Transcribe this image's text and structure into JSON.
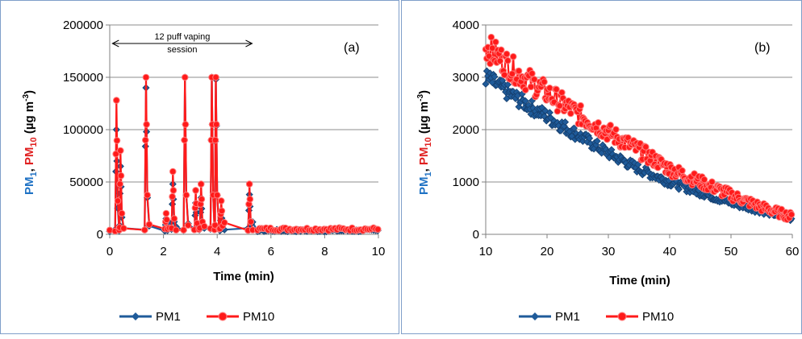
{
  "colors": {
    "pm1": "#1f5b9a",
    "pm10": "#ff1a1a",
    "pm1_label": "#1f72c4",
    "pm10_label": "#e02020",
    "grid": "#8c8c8c"
  },
  "ylabel_parts": {
    "pm1": "PM",
    "pm1_sub": "1",
    "comma": ", ",
    "pm10": "PM",
    "pm10_sub": "10",
    "units_open": " (µg m",
    "units_sup": "-3",
    "units_close": ")"
  },
  "chart_data": [
    {
      "type": "line",
      "panel_label": "(a)",
      "xlabel": "Time (min)",
      "xlim": [
        0,
        10
      ],
      "ylim": [
        0,
        200000
      ],
      "xticks": [
        0,
        2,
        4,
        6,
        8,
        10
      ],
      "yticks": [
        0,
        50000,
        100000,
        150000,
        200000
      ],
      "ytick_labels": [
        "0",
        "50000",
        "100000",
        "150000",
        "200000"
      ],
      "grid": "horizontal",
      "legend": "bottom",
      "annotation": {
        "line1": "12 puff vaping",
        "line2": "session",
        "x_start": 0.1,
        "x_end": 5.3
      },
      "puffs": [
        {
          "t": 0.25,
          "pm10": 128000,
          "pm1": 100000
        },
        {
          "t": 0.4,
          "pm10": 80000,
          "pm1": 65000
        },
        {
          "t": 1.35,
          "pm10": 150000,
          "pm1": 140000
        },
        {
          "t": 2.1,
          "pm10": 20000,
          "pm1": 15000
        },
        {
          "t": 2.35,
          "pm10": 60000,
          "pm1": 48000
        },
        {
          "t": 2.8,
          "pm10": 150000,
          "pm1": 150000
        },
        {
          "t": 3.2,
          "pm10": 42000,
          "pm1": 30000
        },
        {
          "t": 3.4,
          "pm10": 48000,
          "pm1": 35000
        },
        {
          "t": 3.8,
          "pm10": 150000,
          "pm1": 150000
        },
        {
          "t": 3.95,
          "pm10": 150000,
          "pm1": 148000
        },
        {
          "t": 4.15,
          "pm10": 32000,
          "pm1": 22000
        },
        {
          "t": 5.2,
          "pm10": 48000,
          "pm1": 38000
        }
      ],
      "baseline": {
        "pm10": 5000,
        "pm1": 3500,
        "x_from": 5.5,
        "x_to": 10
      },
      "series": [
        {
          "name": "PM1"
        },
        {
          "name": "PM10"
        }
      ]
    },
    {
      "type": "line",
      "panel_label": "(b)",
      "xlabel": "Time (min)",
      "xlim": [
        10,
        60
      ],
      "ylim": [
        0,
        4000
      ],
      "xticks": [
        10,
        20,
        30,
        40,
        50,
        60
      ],
      "yticks": [
        0,
        1000,
        2000,
        3000,
        4000
      ],
      "ytick_labels": [
        "0",
        "1000",
        "2000",
        "3000",
        "4000"
      ],
      "grid": "horizontal",
      "legend": "bottom",
      "series": [
        {
          "name": "PM1",
          "x": [
            10,
            15,
            20,
            25,
            30,
            35,
            40,
            45,
            50,
            55,
            60
          ],
          "values": [
            3000,
            2600,
            2250,
            1900,
            1550,
            1250,
            1000,
            800,
            600,
            450,
            300
          ]
        },
        {
          "name": "PM10",
          "x": [
            10,
            15,
            20,
            25,
            30,
            35,
            40,
            45,
            50,
            55,
            60
          ],
          "values": [
            3600,
            3100,
            2700,
            2300,
            1950,
            1600,
            1250,
            1000,
            750,
            520,
            330
          ]
        }
      ]
    }
  ]
}
